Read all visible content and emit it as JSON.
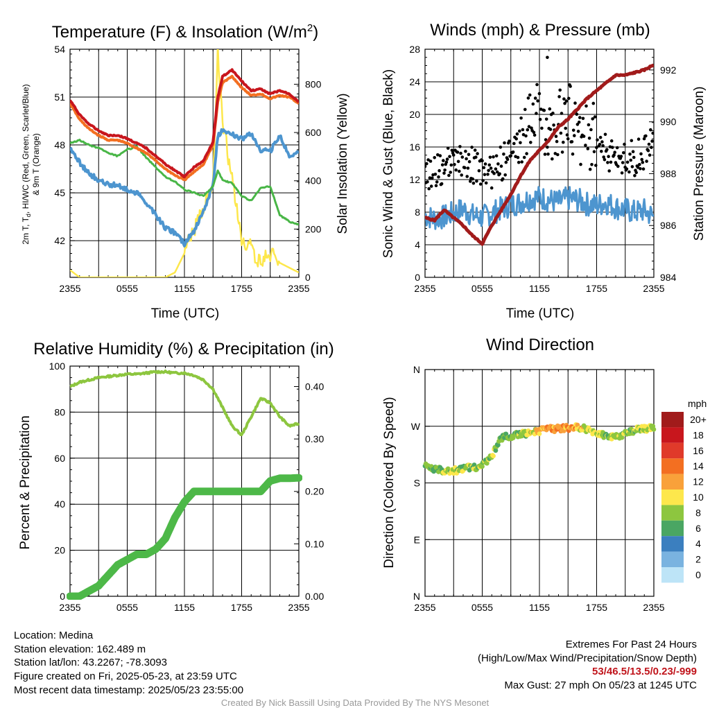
{
  "chart_data": [
    {
      "type": "line",
      "title": "Temperature (F) & Insolation (W/m",
      "title_superscript": "2",
      "title_close": ")",
      "xlabel": "Time (UTC)",
      "ylabel_left_line1": "2m T, T",
      "ylabel_left_sub": "d",
      "ylabel_left_rest": ", HI/WC (Red, Green, Scarlet/Blue)",
      "ylabel_left_line2": "& 9m T (Orange)",
      "ylabel_right": "Solar Insolation (Yellow)",
      "x_ticks": [
        "2355",
        "0555",
        "1155",
        "1755",
        "2355"
      ],
      "y_left_ticks": [
        "54",
        "51",
        "48",
        "45",
        "42"
      ],
      "y_left_tick_values": [
        54,
        51,
        48,
        45,
        42
      ],
      "ylim_left": [
        39.7,
        54
      ],
      "y_right_ticks": [
        "800",
        "600",
        "400",
        "200",
        "0"
      ],
      "y_right_tick_values": [
        800,
        600,
        400,
        200,
        0
      ],
      "ylim_right": [
        0,
        945
      ],
      "x_hours": [
        0,
        1,
        2,
        3,
        4,
        5,
        6,
        7,
        8,
        9,
        10,
        11,
        12,
        13,
        14,
        15,
        15.5,
        16,
        17,
        18,
        19,
        20,
        21,
        22,
        23,
        24
      ],
      "series": [
        {
          "color": "#c8161d",
          "width": 4,
          "values": [
            50.8,
            49.9,
            49.3,
            48.9,
            48.6,
            48.6,
            48.4,
            48.1,
            47.8,
            47.3,
            46.8,
            46.4,
            46.0,
            46.6,
            47.0,
            48.2,
            51.0,
            52.3,
            52.7,
            52.0,
            51.4,
            51.5,
            51.2,
            51.4,
            51.2,
            50.7
          ]
        },
        {
          "color": "#f36f21",
          "width": 4,
          "values": [
            50.6,
            49.6,
            49.0,
            48.6,
            48.3,
            48.3,
            48.1,
            47.8,
            47.5,
            47.0,
            46.5,
            46.1,
            45.8,
            46.3,
            46.8,
            48.0,
            50.7,
            51.9,
            52.3,
            51.6,
            51.1,
            51.2,
            50.9,
            51.1,
            51.0,
            50.6
          ]
        },
        {
          "color": "#49b647",
          "width": 3,
          "values": [
            48.1,
            48.3,
            48.0,
            47.8,
            47.5,
            47.3,
            47.7,
            47.9,
            47.2,
            46.6,
            46.0,
            45.7,
            45.2,
            45.0,
            44.8,
            45.4,
            46.4,
            45.8,
            45.6,
            44.8,
            44.5,
            45.3,
            45.4,
            43.6,
            43.2,
            43.0
          ]
        },
        {
          "color": "#4d95cf",
          "width": 4,
          "values": [
            47.8,
            46.9,
            46.2,
            45.8,
            45.5,
            45.5,
            45.2,
            45.0,
            44.4,
            43.6,
            42.8,
            42.5,
            41.8,
            42.6,
            43.8,
            45.5,
            48.5,
            49.0,
            48.7,
            48.4,
            48.7,
            47.7,
            47.6,
            48.6,
            47.2,
            47.7
          ]
        },
        {
          "color": "#fde74c",
          "width": 2.5,
          "axis": "right",
          "values": [
            30,
            0,
            0,
            0,
            0,
            0,
            0,
            0,
            0,
            0,
            0,
            20,
            100,
            200,
            300,
            400,
            940,
            650,
            400,
            160,
            120,
            60,
            100,
            60,
            40,
            20
          ]
        }
      ]
    },
    {
      "type": "scatter",
      "title": "Winds (mph) & Pressure (mb)",
      "xlabel": "Time (UTC)",
      "ylabel_left": "Sonic Wind & Gust (Blue, Black)",
      "ylabel_right": "Station Pressure (Maroon)",
      "x_ticks": [
        "2355",
        "0555",
        "1155",
        "1755",
        "2355"
      ],
      "y_left_ticks": [
        "28",
        "24",
        "20",
        "16",
        "12",
        "8",
        "4",
        "0"
      ],
      "y_left_tick_values": [
        28,
        24,
        20,
        16,
        12,
        8,
        4,
        0
      ],
      "ylim_left": [
        0,
        28
      ],
      "y_right_ticks": [
        "992",
        "990",
        "988",
        "986",
        "984"
      ],
      "y_right_tick_values": [
        992,
        990,
        988,
        986,
        984
      ],
      "ylim_right": [
        984,
        992.8
      ],
      "x_hours": [
        0,
        1,
        2,
        3,
        4,
        5,
        6,
        7,
        8,
        9,
        10,
        11,
        12,
        13,
        14,
        15,
        16,
        17,
        18,
        19,
        20,
        21,
        22,
        23,
        24
      ],
      "wind_values": [
        7.6,
        7.2,
        7.4,
        7.9,
        8.4,
        7.6,
        7.4,
        7.9,
        8.4,
        8.9,
        9.2,
        9.7,
        9.8,
        9.5,
        9.2,
        9.7,
        9.5,
        9.0,
        8.8,
        9.2,
        8.6,
        8.3,
        8.0,
        8.2,
        7.4
      ],
      "gust_values": [
        12.4,
        13.2,
        13.4,
        14.0,
        14.2,
        13.8,
        12.8,
        12.9,
        14.0,
        15.0,
        16.5,
        19.5,
        19.5,
        19.0,
        18.5,
        20.0,
        17.5,
        17.5,
        17.0,
        15.5,
        14.5,
        15.0,
        14.5,
        15.5,
        17.0
      ],
      "pressure_values": [
        986.3,
        986.2,
        986.6,
        986.3,
        986.0,
        985.6,
        985.3,
        986.0,
        986.6,
        987.2,
        987.9,
        988.5,
        988.9,
        989.3,
        989.8,
        990.1,
        990.5,
        990.9,
        991.2,
        991.5,
        991.8,
        991.8,
        991.9,
        992.0,
        992.2
      ],
      "max_gust_hour": 12.83,
      "max_gust_value": 27,
      "series_colors": {
        "wind": "#4d95cf",
        "gust": "#000000",
        "pressure": "#a11b1b"
      }
    },
    {
      "type": "line",
      "title": "Relative Humidity (%) & Precipitation (in)",
      "ylabel_left": "Percent & Precipitation",
      "x_ticks": [
        "2355",
        "0555",
        "1155",
        "1755",
        "2355"
      ],
      "y_left_ticks": [
        "100",
        "80",
        "60",
        "40",
        "20",
        "0"
      ],
      "y_left_tick_values": [
        100,
        80,
        60,
        40,
        20,
        0
      ],
      "ylim_left": [
        0,
        100
      ],
      "y_right_ticks": [
        "0.40",
        "0.30",
        "0.20",
        "0.10",
        "0.00"
      ],
      "y_right_tick_values": [
        0.4,
        0.3,
        0.2,
        0.1,
        0.0
      ],
      "ylim_right": [
        0,
        0.439
      ],
      "x_hours": [
        0,
        1,
        2,
        3,
        4,
        5,
        6,
        7,
        8,
        9,
        10,
        11,
        12,
        13,
        14,
        15,
        16,
        17,
        18,
        19,
        20,
        21,
        22,
        23,
        24
      ],
      "rh_values": [
        91,
        93,
        94,
        95,
        95.5,
        96,
        96.5,
        96.5,
        97,
        97.5,
        97.5,
        97,
        97,
        96,
        94,
        90,
        82,
        74,
        70,
        78,
        86,
        84,
        78,
        74,
        75
      ],
      "precip_values": [
        0,
        0,
        0.01,
        0.02,
        0.04,
        0.06,
        0.07,
        0.08,
        0.08,
        0.09,
        0.11,
        0.15,
        0.18,
        0.2,
        0.2,
        0.2,
        0.2,
        0.2,
        0.2,
        0.2,
        0.2,
        0.22,
        0.225,
        0.225,
        0.226
      ],
      "series_colors": {
        "rh": "#8dc63f",
        "precip": "#4db848"
      }
    },
    {
      "type": "scatter",
      "title": "Wind Direction",
      "ylabel_left": "Direction (Colored By Speed)",
      "x_ticks": [
        "2355",
        "0555",
        "1155",
        "1755",
        "2355"
      ],
      "y_left_ticks": [
        "N",
        "W",
        "S",
        "E",
        "N"
      ],
      "y_left_tick_values": [
        360,
        270,
        180,
        90,
        0
      ],
      "ylim_left": [
        0,
        360
      ],
      "x_hours": [
        0,
        1,
        2,
        3,
        4,
        5,
        6,
        7,
        8,
        9,
        10,
        11,
        12,
        13,
        14,
        15,
        16,
        17,
        18,
        19,
        20,
        21,
        22,
        23,
        24
      ],
      "direction_values": [
        207,
        201,
        200,
        199,
        203,
        205,
        207,
        222,
        252,
        255,
        257,
        260,
        263,
        265,
        266,
        267,
        268,
        265,
        260,
        255,
        252,
        258,
        264,
        266,
        268
      ],
      "speed_values": [
        7,
        7,
        8,
        9,
        8,
        8,
        8,
        8,
        7,
        7,
        8,
        9,
        11,
        12,
        13,
        12,
        11,
        9,
        9,
        8,
        9,
        8,
        8,
        9,
        9
      ],
      "colorbar_title": "mph",
      "colorbar_labels": [
        "20+",
        "18",
        "16",
        "14",
        "12",
        "10",
        "8",
        "6",
        "4",
        "2",
        "0"
      ],
      "colorbar_colors": [
        "#a11b1b",
        "#c8161d",
        "#e03a2a",
        "#f36f21",
        "#f9a13a",
        "#fde74c",
        "#8dc63f",
        "#4aa663",
        "#3b7fbf",
        "#7ab3e0",
        "#bde4f7"
      ]
    }
  ],
  "footer": {
    "location": "Location: Medina",
    "elevation": "Station elevation: 162.489 m",
    "latlon": "Station lat/lon: 43.2267; -78.3093",
    "created": "Figure created on Fri, 2025-05-23, at 23:59 UTC",
    "recent": "Most recent data timestamp: 2025/05/23 23:55:00",
    "extremes_title": "Extremes For Past 24 Hours",
    "extremes_legend": "(High/Low/Max Wind/Precipitation/Snow Depth)",
    "extremes_values": "53/46.5/13.5/0.23/-999",
    "max_gust": "Max Gust: 27 mph On 05/23 at 1245 UTC",
    "credit": "Created By Nick Bassill Using Data Provided By The NYS Mesonet"
  }
}
